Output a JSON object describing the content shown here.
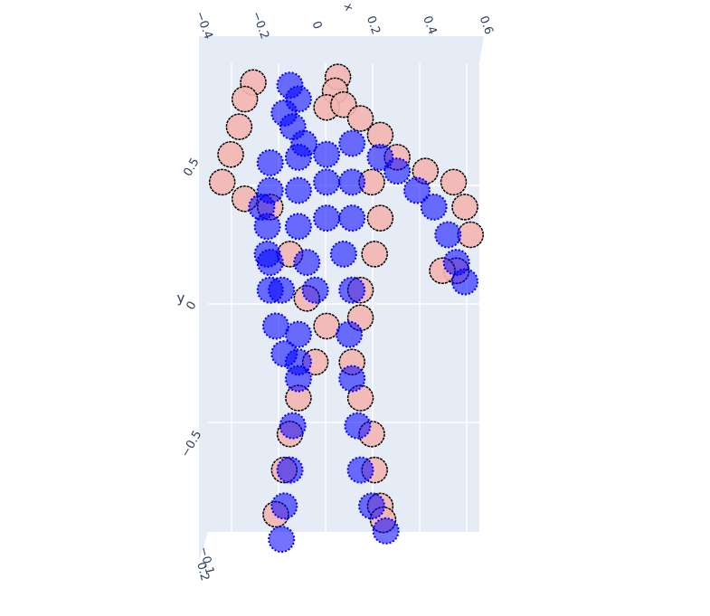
{
  "chart_data": {
    "type": "scatter3d",
    "xlabel": "x",
    "ylabel": "y",
    "xlim": [
      -0.4,
      0.6
    ],
    "ylim": [
      -0.85,
      0.85
    ],
    "zlim": [
      -0.1,
      0.2
    ],
    "xticks": [
      {
        "value": -0.4,
        "label": "−0.4"
      },
      {
        "value": -0.2,
        "label": "−0.2"
      },
      0,
      0.2,
      0.4,
      0.6
    ],
    "yticks": [
      0.5,
      0,
      {
        "value": -0.5,
        "label": "−0.5"
      }
    ],
    "zticks": [
      {
        "value": -0.1,
        "label": "−0.1"
      },
      0.2
    ],
    "grid": true,
    "series": [
      {
        "color": "#f4b6b0",
        "x": [
          -0.25,
          -0.28,
          -0.3,
          -0.33,
          -0.36,
          -0.28,
          -0.19,
          0.05,
          0.04,
          0.01,
          0.07,
          0.13,
          0.2,
          0.26,
          0.36,
          0.46,
          0.5,
          0.52,
          0.47,
          0.42,
          0.17,
          0.2,
          0.18,
          0.13,
          -0.12,
          -0.06,
          0.01,
          0.13,
          -0.03,
          -0.09,
          -0.12,
          -0.14,
          -0.17,
          0.1,
          0.13,
          0.17,
          0.18,
          0.2,
          0.21
        ],
        "y": [
          0.8,
          0.74,
          0.64,
          0.54,
          0.44,
          0.38,
          0.35,
          0.82,
          0.77,
          0.71,
          0.72,
          0.67,
          0.61,
          0.53,
          0.48,
          0.44,
          0.35,
          0.25,
          0.12,
          0.12,
          0.44,
          0.31,
          0.18,
          0.05,
          0.18,
          0.02,
          -0.08,
          -0.05,
          -0.21,
          -0.34,
          -0.47,
          -0.6,
          -0.76,
          -0.21,
          -0.34,
          -0.47,
          -0.6,
          -0.73,
          -0.78
        ]
      },
      {
        "color": "#0000ff",
        "x": [
          -0.12,
          -0.09,
          -0.14,
          -0.11,
          -0.07,
          -0.19,
          -0.09,
          0.01,
          0.1,
          0.2,
          -0.19,
          -0.09,
          0.01,
          0.1,
          -0.2,
          -0.09,
          0.01,
          0.1,
          -0.19,
          -0.06,
          0.07,
          -0.15,
          -0.03,
          0.1,
          0.26,
          0.33,
          0.39,
          0.44,
          0.47,
          0.5,
          -0.22,
          -0.2,
          -0.19,
          -0.17,
          -0.14,
          -0.09,
          -0.09,
          -0.09,
          -0.11,
          -0.12,
          -0.14,
          -0.15,
          0.09,
          0.1,
          0.12,
          0.13,
          0.17,
          0.22
        ],
        "y": [
          0.79,
          0.74,
          0.69,
          0.64,
          0.58,
          0.51,
          0.53,
          0.54,
          0.58,
          0.53,
          0.41,
          0.41,
          0.44,
          0.44,
          0.28,
          0.28,
          0.31,
          0.31,
          0.15,
          0.15,
          0.18,
          0.05,
          0.05,
          0.05,
          0.48,
          0.41,
          0.35,
          0.25,
          0.15,
          0.08,
          0.35,
          0.18,
          0.05,
          -0.08,
          -0.18,
          -0.21,
          -0.11,
          -0.27,
          -0.44,
          -0.6,
          -0.73,
          -0.85,
          -0.11,
          -0.27,
          -0.44,
          -0.6,
          -0.73,
          -0.82
        ]
      }
    ]
  }
}
